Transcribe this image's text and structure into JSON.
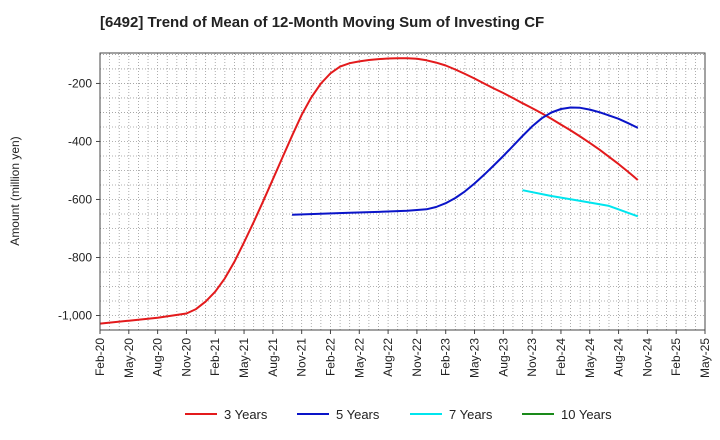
{
  "chart_data": {
    "type": "line",
    "title": "[6492]  Trend of Mean of 12-Month Moving Sum of Investing CF",
    "ylabel": "Amount (million yen)",
    "xlabel": "",
    "ylim": [
      -1050,
      -95
    ],
    "y_ticks": [
      -200,
      -400,
      -600,
      -800,
      -1000
    ],
    "y_tick_labels": [
      "-200",
      "-400",
      "-600",
      "-800",
      "-1,000"
    ],
    "x_start": "2020-02",
    "x_end": "2025-05",
    "x_tick_labels": [
      "Feb-20",
      "May-20",
      "Aug-20",
      "Nov-20",
      "Feb-21",
      "May-21",
      "Aug-21",
      "Nov-21",
      "Feb-22",
      "May-22",
      "Aug-22",
      "Nov-22",
      "Feb-23",
      "May-23",
      "Aug-23",
      "Nov-23",
      "Feb-24",
      "May-24",
      "Aug-24",
      "Nov-24",
      "Feb-25",
      "May-25"
    ],
    "grid": true,
    "legend_position": "bottom",
    "series": [
      {
        "name": "3 Years",
        "color": "#e31a1c",
        "points": [
          [
            "2020-02",
            -1028
          ],
          [
            "2020-05",
            -1018
          ],
          [
            "2020-08",
            -1008
          ],
          [
            "2020-11",
            -993
          ],
          [
            "2020-12",
            -978
          ],
          [
            "2021-01",
            -952
          ],
          [
            "2021-02",
            -918
          ],
          [
            "2021-03",
            -872
          ],
          [
            "2021-04",
            -815
          ],
          [
            "2021-05",
            -748
          ],
          [
            "2021-06",
            -678
          ],
          [
            "2021-07",
            -605
          ],
          [
            "2021-08",
            -530
          ],
          [
            "2021-09",
            -455
          ],
          [
            "2021-10",
            -380
          ],
          [
            "2021-11",
            -308
          ],
          [
            "2021-12",
            -248
          ],
          [
            "2022-01",
            -200
          ],
          [
            "2022-02",
            -165
          ],
          [
            "2022-03",
            -142
          ],
          [
            "2022-04",
            -130
          ],
          [
            "2022-05",
            -124
          ],
          [
            "2022-06",
            -119
          ],
          [
            "2022-07",
            -116
          ],
          [
            "2022-08",
            -114
          ],
          [
            "2022-09",
            -113
          ],
          [
            "2022-10",
            -113
          ],
          [
            "2022-11",
            -115
          ],
          [
            "2022-12",
            -120
          ],
          [
            "2023-01",
            -128
          ],
          [
            "2023-02",
            -138
          ],
          [
            "2023-03",
            -152
          ],
          [
            "2023-04",
            -167
          ],
          [
            "2023-05",
            -183
          ],
          [
            "2023-06",
            -200
          ],
          [
            "2023-07",
            -217
          ],
          [
            "2023-08",
            -233
          ],
          [
            "2023-09",
            -250
          ],
          [
            "2023-10",
            -268
          ],
          [
            "2023-11",
            -285
          ],
          [
            "2023-12",
            -303
          ],
          [
            "2024-01",
            -322
          ],
          [
            "2024-02",
            -342
          ],
          [
            "2024-03",
            -362
          ],
          [
            "2024-04",
            -383
          ],
          [
            "2024-05",
            -405
          ],
          [
            "2024-06",
            -428
          ],
          [
            "2024-07",
            -453
          ],
          [
            "2024-08",
            -478
          ],
          [
            "2024-09",
            -505
          ],
          [
            "2024-10",
            -533
          ]
        ]
      },
      {
        "name": "5 Years",
        "color": "#0a14c8",
        "points": [
          [
            "2021-10",
            -653
          ],
          [
            "2022-01",
            -649
          ],
          [
            "2022-04",
            -646
          ],
          [
            "2022-07",
            -643
          ],
          [
            "2022-10",
            -639
          ],
          [
            "2022-12",
            -634
          ],
          [
            "2023-01",
            -626
          ],
          [
            "2023-02",
            -613
          ],
          [
            "2023-03",
            -595
          ],
          [
            "2023-04",
            -572
          ],
          [
            "2023-05",
            -545
          ],
          [
            "2023-06",
            -515
          ],
          [
            "2023-07",
            -483
          ],
          [
            "2023-08",
            -450
          ],
          [
            "2023-09",
            -416
          ],
          [
            "2023-10",
            -381
          ],
          [
            "2023-11",
            -348
          ],
          [
            "2023-12",
            -320
          ],
          [
            "2024-01",
            -300
          ],
          [
            "2024-02",
            -288
          ],
          [
            "2024-03",
            -283
          ],
          [
            "2024-04",
            -284
          ],
          [
            "2024-05",
            -290
          ],
          [
            "2024-06",
            -299
          ],
          [
            "2024-07",
            -310
          ],
          [
            "2024-08",
            -322
          ],
          [
            "2024-09",
            -337
          ],
          [
            "2024-10",
            -353
          ]
        ]
      },
      {
        "name": "7 Years",
        "color": "#00e5ee",
        "points": [
          [
            "2023-10",
            -568
          ],
          [
            "2024-01",
            -588
          ],
          [
            "2024-04",
            -605
          ],
          [
            "2024-07",
            -622
          ],
          [
            "2024-10",
            -658
          ]
        ]
      },
      {
        "name": "10 Years",
        "color": "#1a8a1a",
        "points": []
      }
    ]
  }
}
